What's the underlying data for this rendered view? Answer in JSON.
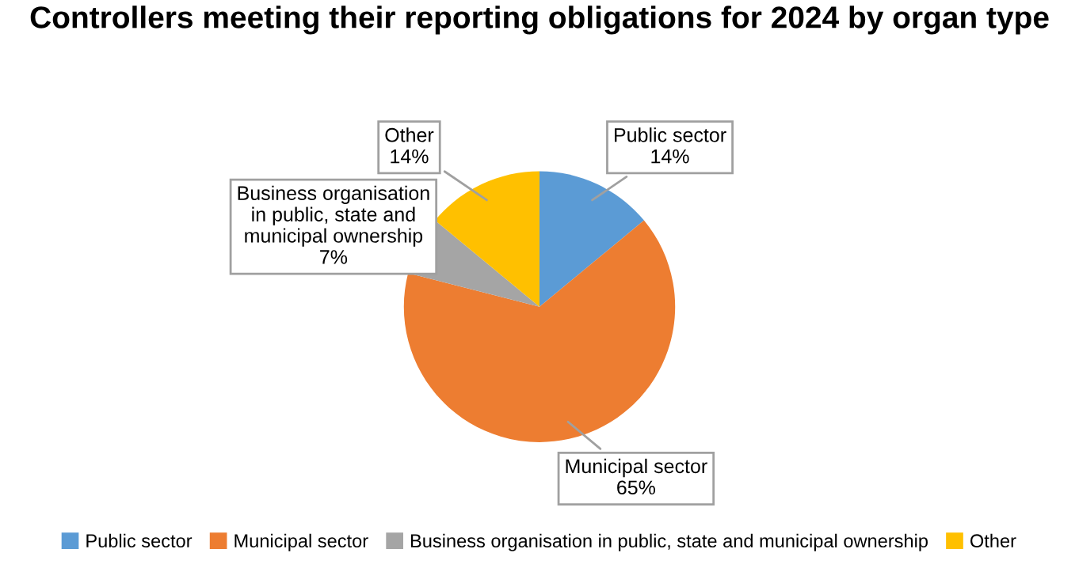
{
  "chart_data": {
    "type": "pie",
    "title": "Controllers meeting their reporting obligations for 2024 by organ type",
    "categories": [
      "Public sector",
      "Municipal sector",
      "Business organisation in public, state and municipal ownership",
      "Other"
    ],
    "values": [
      14,
      65,
      7,
      14
    ],
    "value_labels": [
      "14%",
      "65%",
      "7%",
      "14%"
    ],
    "colors": [
      "#5b9bd5",
      "#ed7d31",
      "#a5a5a5",
      "#ffc000"
    ],
    "legend": "bottom"
  }
}
